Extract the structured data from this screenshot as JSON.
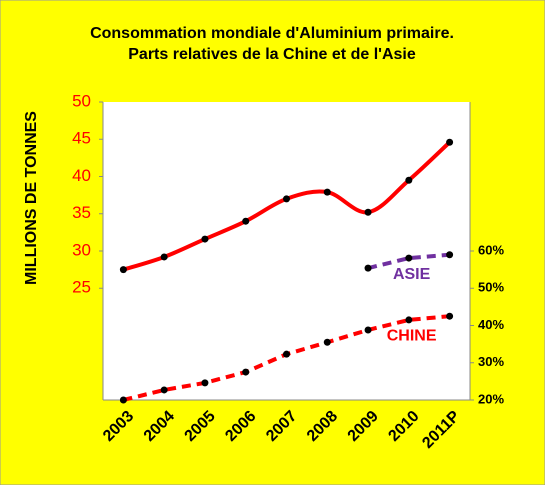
{
  "chart_data": {
    "type": "line",
    "title": [
      "Consommation mondiale d'Aluminium primaire.",
      "Parts relatives de la Chine et de l'Asie"
    ],
    "ylabel": "MILLIONS DE TONNES",
    "categories": [
      "2003",
      "2004",
      "2005",
      "2006",
      "2007",
      "2008",
      "2009",
      "2010",
      "2011P"
    ],
    "series": [
      {
        "color": "#ff0000",
        "line_style": "solid",
        "smooth": true,
        "axis": "y",
        "values": [
          27.5,
          29.2,
          31.6,
          34,
          37,
          37.9,
          35.2,
          39.5,
          44.6
        ]
      },
      {
        "name": "CHINE",
        "color": "#ff0000",
        "line_style": "dashed",
        "axis": "y2",
        "values": [
          20,
          22.7,
          24.6,
          27.5,
          32.3,
          35.5,
          38.8,
          41.5,
          42.5
        ]
      },
      {
        "name": "ASIE",
        "color": "#7030a0",
        "line_style": "dashed",
        "axis": "y2",
        "values": [
          null,
          null,
          null,
          null,
          null,
          null,
          55.4,
          58.1,
          59
        ]
      }
    ],
    "ylim": [
      10,
      50
    ],
    "yticks": [
      25,
      30,
      35,
      40,
      45,
      50
    ],
    "y2lim": [
      20,
      100
    ],
    "y2ticks": [
      {
        "value": 20,
        "label": "20%"
      },
      {
        "value": 30,
        "label": "30%"
      },
      {
        "value": 40,
        "label": "40%"
      },
      {
        "value": 50,
        "label": "50%"
      },
      {
        "value": 60,
        "label": "60%"
      }
    ],
    "grid": false,
    "background": "#ffff00"
  }
}
